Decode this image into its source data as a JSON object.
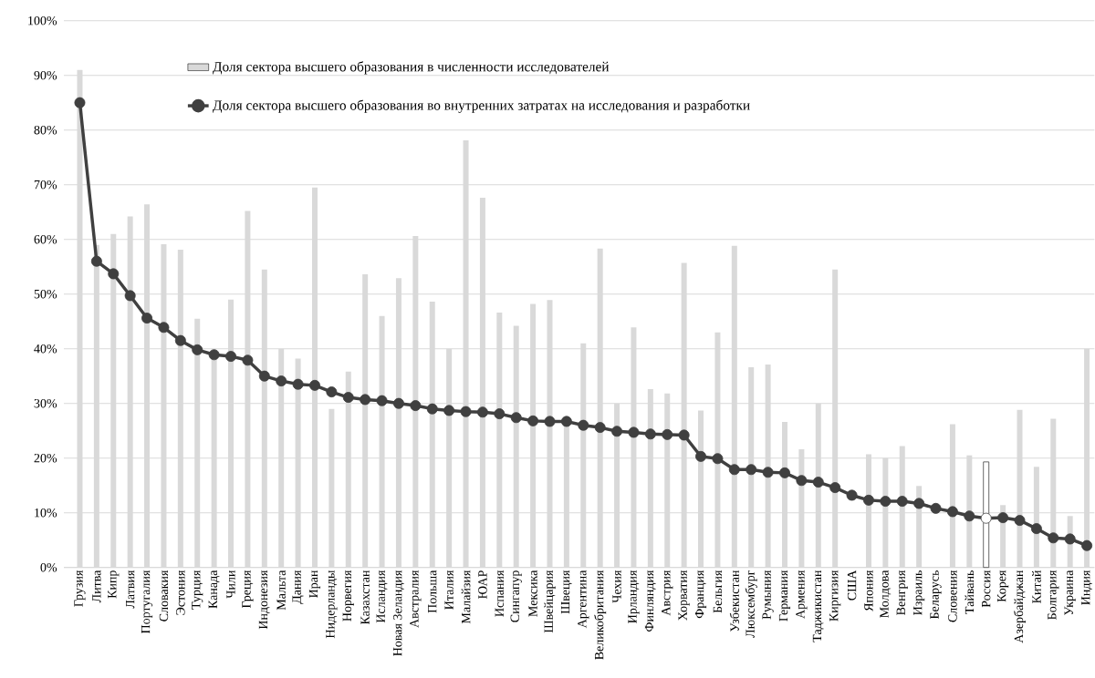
{
  "chart_data": {
    "type": "bar",
    "categories": [
      "Грузия",
      "Литва",
      "Кипр",
      "Латвия",
      "Португалия",
      "Словакия",
      "Эстония",
      "Турция",
      "Канада",
      "Чили",
      "Греция",
      "Индонезия",
      "Мальта",
      "Дания",
      "Иран",
      "Нидерланды",
      "Норвегия",
      "Казахстан",
      "Исландия",
      "Новая Зеландия",
      "Австралия",
      "Польша",
      "Италия",
      "Малайзия",
      "ЮАР",
      "Испания",
      "Сингапур",
      "Мексика",
      "Швейцария",
      "Швеция",
      "Аргентина",
      "Великобритания",
      "Чехия",
      "Ирландия",
      "Финляндия",
      "Австрия",
      "Хорватия",
      "Франция",
      "Бельгия",
      "Узбекистан",
      "Люксембург",
      "Румыния",
      "Германия",
      "Армения",
      "Таджикистан",
      "Киргизия",
      "США",
      "Япония",
      "Молдова",
      "Венгрия",
      "Израиль",
      "Беларусь",
      "Словения",
      "Тайвань",
      "Россия",
      "Корея",
      "Азербайджан",
      "Китай",
      "Болгария",
      "Украина",
      "Индия"
    ],
    "series": [
      {
        "name": "Доля сектора высшего образования в численности исследователей",
        "color": "#d9d9d9",
        "colors": [
          "#d9d9d9",
          "#d9d9d9",
          "#d9d9d9",
          "#d9d9d9",
          "#d9d9d9",
          "#d9d9d9",
          "#d9d9d9",
          "#d9d9d9",
          "#d9d9d9",
          "#d9d9d9",
          "#d9d9d9",
          "#d9d9d9",
          "#d9d9d9",
          "#d9d9d9",
          "#d9d9d9",
          "#d9d9d9",
          "#d9d9d9",
          "#d9d9d9",
          "#d9d9d9",
          "#d9d9d9",
          "#d9d9d9",
          "#d9d9d9",
          "#d9d9d9",
          "#d9d9d9",
          "#d9d9d9",
          "#d9d9d9",
          "#d9d9d9",
          "#d9d9d9",
          "#d9d9d9",
          "#d9d9d9",
          "#d9d9d9",
          "#d9d9d9",
          "#d9d9d9",
          "#d9d9d9",
          "#d9d9d9",
          "#d9d9d9",
          "#d9d9d9",
          "#d9d9d9",
          "#d9d9d9",
          "#d9d9d9",
          "#d9d9d9",
          "#d9d9d9",
          "#d9d9d9",
          "#d9d9d9",
          "#d9d9d9",
          "#d9d9d9",
          "#d9d9d9",
          "#d9d9d9",
          "#d9d9d9",
          "#d9d9d9",
          "#d9d9d9",
          "#d9d9d9",
          "#d9d9d9",
          "#d9d9d9",
          "#ffffff",
          "#d9d9d9",
          "#d9d9d9",
          "#d9d9d9",
          "#d9d9d9",
          "#d9d9d9",
          "#d9d9d9"
        ],
        "values": [
          91,
          59,
          61,
          64.2,
          66.4,
          59.1,
          58.1,
          45.5,
          38,
          49,
          65.2,
          54.5,
          40,
          38.2,
          69.5,
          29,
          35.8,
          53.6,
          46,
          52.9,
          60.6,
          48.6,
          40,
          78.1,
          67.6,
          46.6,
          44.2,
          48.2,
          48.9,
          26,
          41,
          58.3,
          30,
          43.9,
          32.6,
          31.8,
          55.7,
          28.7,
          43,
          58.8,
          36.6,
          37.1,
          26.6,
          21.6,
          30,
          54.5,
          null,
          20.7,
          20,
          22.2,
          14.9,
          null,
          26.2,
          20.5,
          19.3,
          11.4,
          28.8,
          18.4,
          27.2,
          9.4,
          40
        ]
      },
      {
        "name": "Доля сектора высшего образования во внутренних затратах на исследования и разработки",
        "type": "line",
        "color": "#404040",
        "colors": [
          "#404040",
          "#404040",
          "#404040",
          "#404040",
          "#404040",
          "#404040",
          "#404040",
          "#404040",
          "#404040",
          "#404040",
          "#404040",
          "#404040",
          "#404040",
          "#404040",
          "#404040",
          "#404040",
          "#404040",
          "#404040",
          "#404040",
          "#404040",
          "#404040",
          "#404040",
          "#404040",
          "#404040",
          "#404040",
          "#404040",
          "#404040",
          "#404040",
          "#404040",
          "#404040",
          "#404040",
          "#404040",
          "#404040",
          "#404040",
          "#404040",
          "#404040",
          "#404040",
          "#404040",
          "#404040",
          "#404040",
          "#404040",
          "#404040",
          "#404040",
          "#404040",
          "#404040",
          "#404040",
          "#404040",
          "#404040",
          "#404040",
          "#404040",
          "#404040",
          "#404040",
          "#404040",
          "#404040",
          "#ffffff",
          "#404040",
          "#404040",
          "#404040",
          "#404040",
          "#404040",
          "#404040"
        ],
        "values": [
          85,
          56,
          53.7,
          49.7,
          45.6,
          43.9,
          41.5,
          39.8,
          38.9,
          38.6,
          37.9,
          35,
          34.1,
          33.5,
          33.3,
          32.1,
          31.1,
          30.7,
          30.5,
          30,
          29.6,
          29,
          28.7,
          28.5,
          28.4,
          28.1,
          27.4,
          26.8,
          26.7,
          26.7,
          26,
          25.6,
          24.9,
          24.7,
          24.4,
          24.3,
          24.2,
          20.3,
          19.9,
          17.9,
          17.9,
          17.4,
          17.3,
          15.9,
          15.6,
          14.6,
          13.2,
          12.3,
          12.1,
          12.1,
          11.7,
          10.8,
          10.2,
          9.4,
          9,
          9.1,
          8.6,
          7.1,
          5.4,
          5.2,
          4
        ]
      }
    ],
    "marker": "circle",
    "line_style": "solid",
    "ylim": [
      0,
      100
    ],
    "yticks": [
      {
        "value": 0,
        "label": "0%"
      },
      {
        "value": 10,
        "label": "10%"
      },
      {
        "value": 20,
        "label": "20%"
      },
      {
        "value": 30,
        "label": "30%"
      },
      {
        "value": 40,
        "label": "40%"
      },
      {
        "value": 50,
        "label": "50%"
      },
      {
        "value": 60,
        "label": "60%"
      },
      {
        "value": 70,
        "label": "70%"
      },
      {
        "value": 80,
        "label": "80%"
      },
      {
        "value": 90,
        "label": "90%"
      },
      {
        "value": 100,
        "label": "100%"
      }
    ],
    "grid": "y",
    "legend": "top"
  }
}
